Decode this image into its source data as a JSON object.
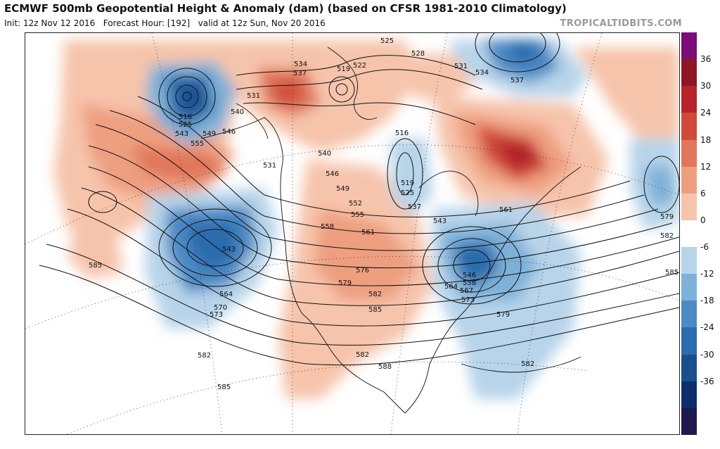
{
  "header": {
    "title": "ECMWF 500mb Geopotential Height & Anomaly (dam) (based on CFSR 1981-2010 Climatology)",
    "init": "Init: 12z Nov 12 2016",
    "forecast": "Forecast Hour: [192]",
    "valid": "valid at 12z Sun, Nov 20 2016",
    "brand": "TROPICALTIDBITS.COM"
  },
  "colorbar": {
    "ticks": [
      "36",
      "30",
      "24",
      "18",
      "12",
      "6",
      "0",
      "-6",
      "-12",
      "-18",
      "-24",
      "-30",
      "-36"
    ],
    "colors": [
      "#1f1a4e",
      "#0c2f6b",
      "#1a4f8f",
      "#2b6cae",
      "#4b8ac4",
      "#7eb1d8",
      "#b7d4ea",
      "#ffffff",
      "#f6c4ab",
      "#ee9f80",
      "#e1765a",
      "#d04a3a",
      "#b4242a",
      "#8f1724",
      "#7a0d78"
    ]
  },
  "contour_labels": [
    {
      "t": "516"
    },
    {
      "t": "525"
    },
    {
      "t": "543"
    },
    {
      "t": "549"
    },
    {
      "t": "555"
    },
    {
      "t": "546"
    },
    {
      "t": "531"
    },
    {
      "t": "534"
    },
    {
      "t": "537"
    },
    {
      "t": "540"
    },
    {
      "t": "519"
    },
    {
      "t": "522"
    },
    {
      "t": "525"
    },
    {
      "t": "528"
    },
    {
      "t": "531"
    },
    {
      "t": "534"
    },
    {
      "t": "537"
    },
    {
      "t": "531"
    },
    {
      "t": "540"
    },
    {
      "t": "546"
    },
    {
      "t": "549"
    },
    {
      "t": "552"
    },
    {
      "t": "555"
    },
    {
      "t": "558"
    },
    {
      "t": "561"
    },
    {
      "t": "516"
    },
    {
      "t": "519"
    },
    {
      "t": "525"
    },
    {
      "t": "537"
    },
    {
      "t": "543"
    },
    {
      "t": "561"
    },
    {
      "t": "543"
    },
    {
      "t": "564"
    },
    {
      "t": "570"
    },
    {
      "t": "573"
    },
    {
      "t": "576"
    },
    {
      "t": "579"
    },
    {
      "t": "582"
    },
    {
      "t": "585"
    },
    {
      "t": "546"
    },
    {
      "t": "558"
    },
    {
      "t": "564"
    },
    {
      "t": "567"
    },
    {
      "t": "573"
    },
    {
      "t": "579"
    },
    {
      "t": "582"
    },
    {
      "t": "585"
    },
    {
      "t": "585"
    },
    {
      "t": "582"
    },
    {
      "t": "588"
    },
    {
      "t": "582"
    },
    {
      "t": "579"
    },
    {
      "t": "582"
    },
    {
      "t": "585"
    }
  ]
}
